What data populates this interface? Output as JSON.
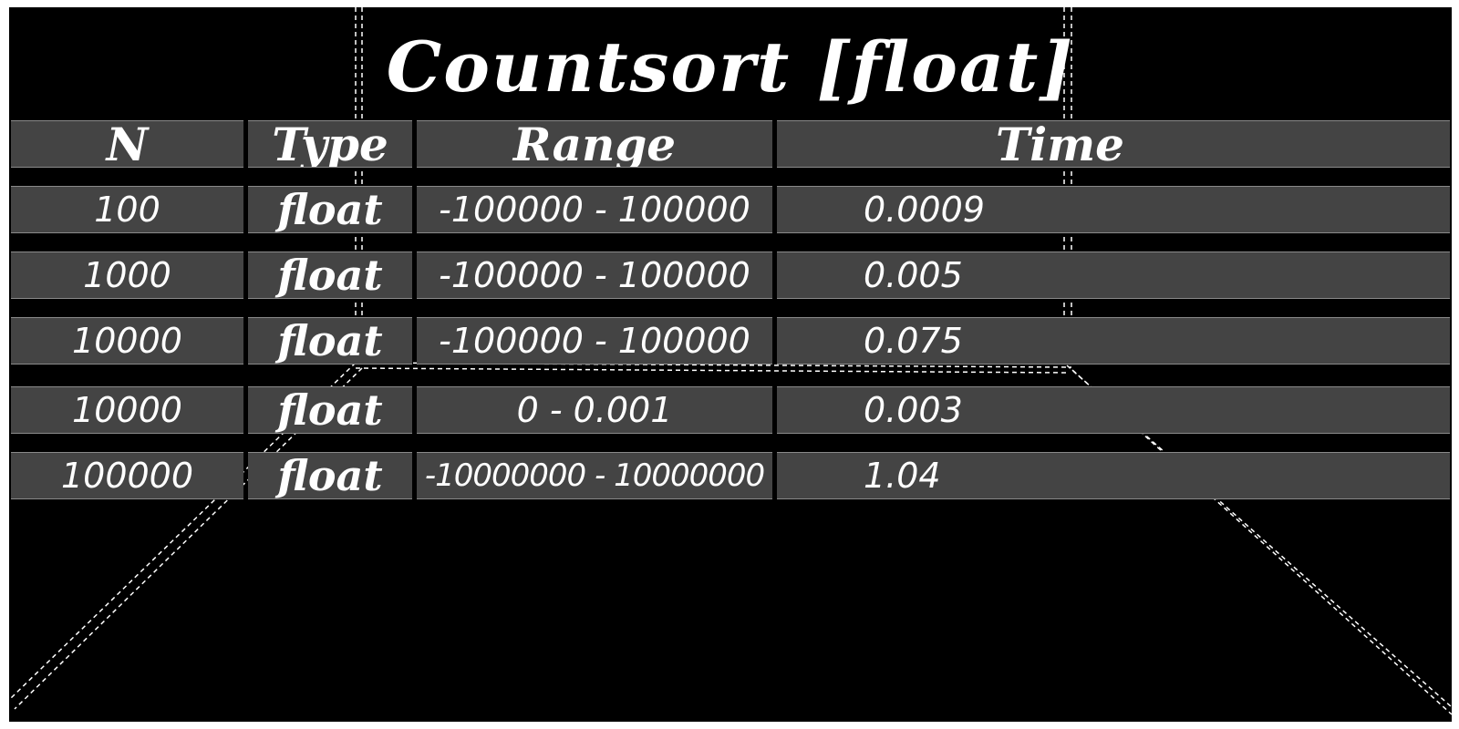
{
  "title": "Countsort [float]",
  "table": {
    "headers": {
      "n": "N",
      "type": "Type",
      "range": "Range",
      "time": "Time"
    },
    "rows": [
      {
        "n": "100",
        "type": "float",
        "range": "-100000 - 100000",
        "time": "0.0009"
      },
      {
        "n": "1000",
        "type": "float",
        "range": "-100000 - 100000",
        "time": "0.005"
      },
      {
        "n": "10000",
        "type": "float",
        "range": "-100000 - 100000",
        "time": "0.075"
      },
      {
        "n": "10000",
        "type": "float",
        "range": "0 - 0.001",
        "time": "0.003"
      },
      {
        "n": "100000",
        "type": "float",
        "range": "-10000000 - 10000000",
        "time": "1.04"
      }
    ]
  },
  "colors": {
    "background": "#000000",
    "row_fill": "#444444",
    "text": "#ffffff",
    "frame": "#ffffff"
  }
}
